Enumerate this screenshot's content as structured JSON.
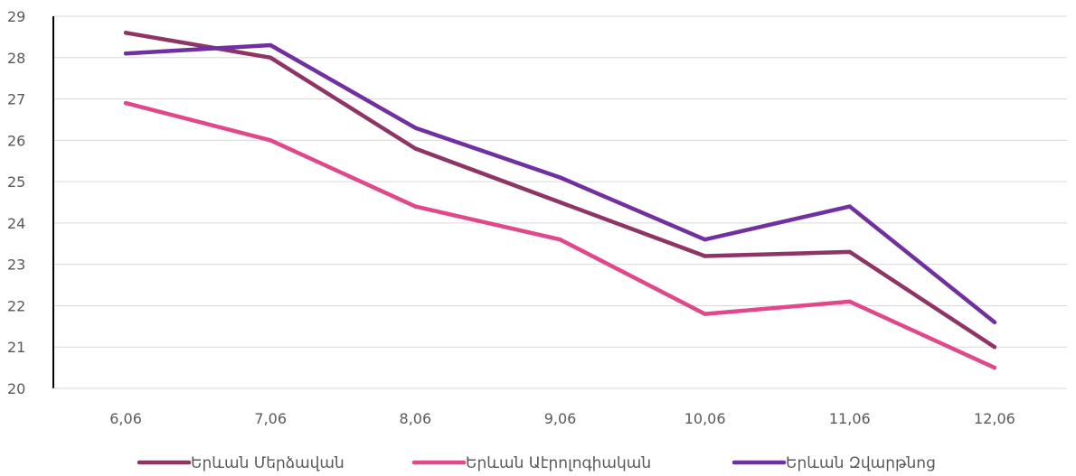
{
  "chart_data": {
    "type": "line",
    "categories": [
      "6,06",
      "7,06",
      "8,06",
      "9,06",
      "10,06",
      "11,06",
      "12,06"
    ],
    "series": [
      {
        "name": "Երևան Մերձավան",
        "color": "#8E3566",
        "values": [
          28.6,
          28.0,
          25.8,
          24.5,
          23.2,
          23.3,
          21.0
        ]
      },
      {
        "name": "Երևան Աէրոլոգիական",
        "color": "#E0488A",
        "values": [
          26.9,
          26.0,
          24.4,
          23.6,
          21.8,
          22.1,
          20.5
        ]
      },
      {
        "name": "Երևան Զվարթնոց",
        "color": "#7030A0",
        "values": [
          28.1,
          28.3,
          26.3,
          25.1,
          23.6,
          24.4,
          21.6
        ]
      }
    ],
    "yticks": [
      "20",
      "21",
      "22",
      "23",
      "24",
      "25",
      "26",
      "27",
      "28",
      "29"
    ],
    "ylim": [
      20,
      29
    ],
    "grid": true,
    "legend_position": "bottom",
    "title": "",
    "xlabel": "",
    "ylabel": ""
  }
}
